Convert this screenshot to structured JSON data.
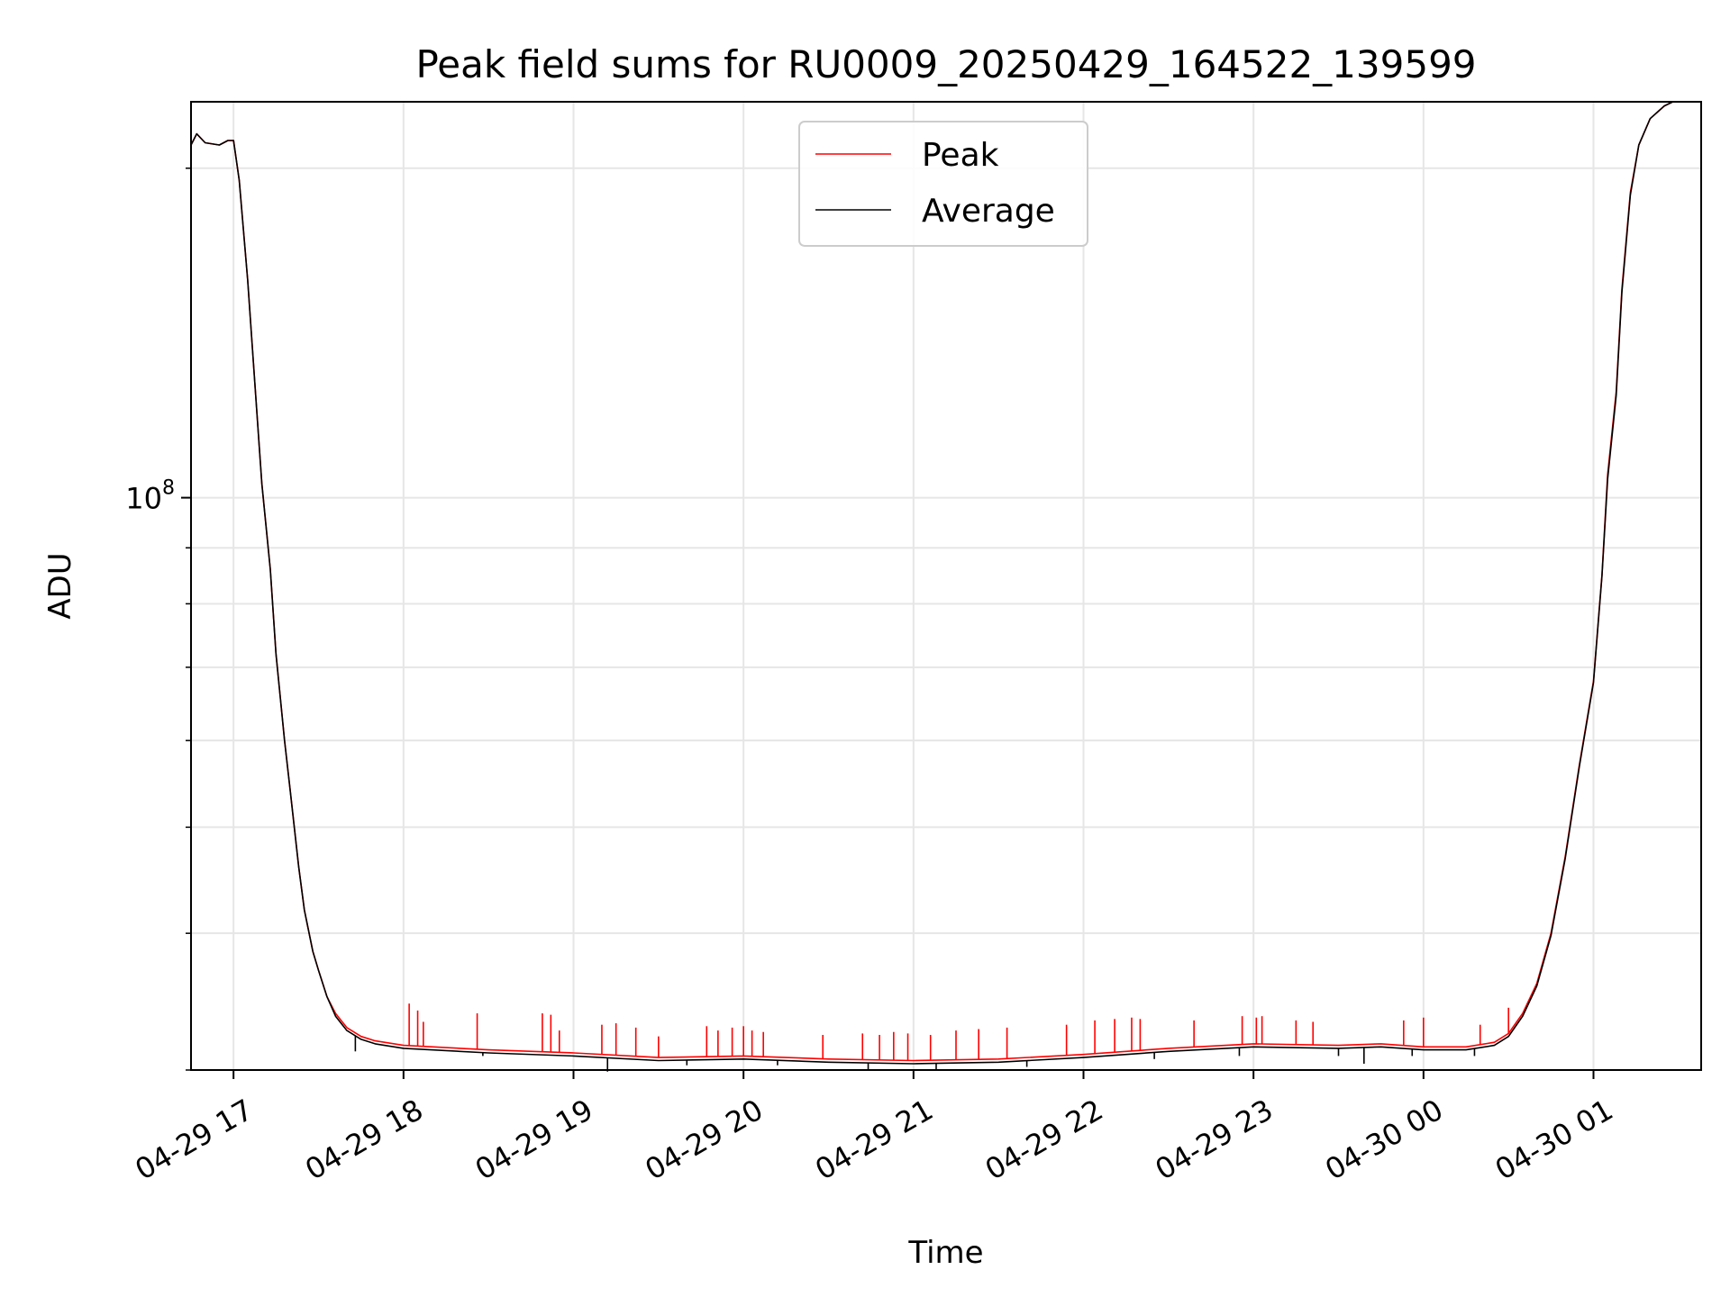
{
  "chart_data": {
    "type": "line",
    "title": "Peak field sums for RU0009_20250429_164522_139599",
    "xlabel": "Time",
    "ylabel": "ADU",
    "yscale": "log",
    "ylim": [
      30000000,
      230000000
    ],
    "xlim": [
      "2025-04-29 16:45",
      "2025-04-30 01:38"
    ],
    "x_ticks": [
      {
        "t": "2025-04-29 17:00",
        "label": "04-29 17"
      },
      {
        "t": "2025-04-29 18:00",
        "label": "04-29 18"
      },
      {
        "t": "2025-04-29 19:00",
        "label": "04-29 19"
      },
      {
        "t": "2025-04-29 20:00",
        "label": "04-29 20"
      },
      {
        "t": "2025-04-29 21:00",
        "label": "04-29 21"
      },
      {
        "t": "2025-04-29 22:00",
        "label": "04-29 22"
      },
      {
        "t": "2025-04-29 23:00",
        "label": "04-29 23"
      },
      {
        "t": "2025-04-30 00:00",
        "label": "04-30 00"
      },
      {
        "t": "2025-04-30 01:00",
        "label": "04-30 01"
      }
    ],
    "y_major_ticks": [
      {
        "value": 100000000,
        "base": "10",
        "exp": "8"
      }
    ],
    "y_minor_ticks": [
      30000000,
      40000000,
      50000000,
      60000000,
      70000000,
      80000000,
      90000000,
      200000000
    ],
    "grid": true,
    "legend_position": "top-center",
    "series": [
      {
        "name": "Peak",
        "color": "#ff0000",
        "points": [
          [
            "2025-04-29 16:45",
            210000000
          ],
          [
            "2025-04-29 16:47",
            215000000
          ],
          [
            "2025-04-29 16:50",
            211000000
          ],
          [
            "2025-04-29 16:55",
            210000000
          ],
          [
            "2025-04-29 16:58",
            212000000
          ],
          [
            "2025-04-29 17:00",
            212000000
          ],
          [
            "2025-04-29 17:02",
            195000000
          ],
          [
            "2025-04-29 17:05",
            158000000
          ],
          [
            "2025-04-29 17:07",
            133000000
          ],
          [
            "2025-04-29 17:10",
            103000000
          ],
          [
            "2025-04-29 17:13",
            86000000
          ],
          [
            "2025-04-29 17:15",
            72000000
          ],
          [
            "2025-04-29 17:18",
            60000000
          ],
          [
            "2025-04-29 17:20",
            54000000
          ],
          [
            "2025-04-29 17:23",
            46000000
          ],
          [
            "2025-04-29 17:25",
            42000000
          ],
          [
            "2025-04-29 17:28",
            38500000
          ],
          [
            "2025-04-29 17:30",
            37000000
          ],
          [
            "2025-04-29 17:33",
            35000000
          ],
          [
            "2025-04-29 17:36",
            33800000
          ],
          [
            "2025-04-29 17:40",
            32800000
          ],
          [
            "2025-04-29 17:45",
            32200000
          ],
          [
            "2025-04-29 17:50",
            31900000
          ],
          [
            "2025-04-29 18:00",
            31600000
          ],
          [
            "2025-04-29 18:30",
            31300000
          ],
          [
            "2025-04-29 19:00",
            31100000
          ],
          [
            "2025-04-29 19:30",
            30800000
          ],
          [
            "2025-04-29 20:00",
            30900000
          ],
          [
            "2025-04-29 20:30",
            30700000
          ],
          [
            "2025-04-29 21:00",
            30600000
          ],
          [
            "2025-04-29 21:30",
            30700000
          ],
          [
            "2025-04-29 22:00",
            31000000
          ],
          [
            "2025-04-29 22:30",
            31400000
          ],
          [
            "2025-04-29 23:00",
            31700000
          ],
          [
            "2025-04-29 23:30",
            31600000
          ],
          [
            "2025-04-29 23:45",
            31700000
          ],
          [
            "2025-04-30 00:00",
            31500000
          ],
          [
            "2025-04-30 00:15",
            31500000
          ],
          [
            "2025-04-30 00:25",
            31800000
          ],
          [
            "2025-04-30 00:30",
            32400000
          ],
          [
            "2025-04-30 00:35",
            33800000
          ],
          [
            "2025-04-30 00:40",
            36000000
          ],
          [
            "2025-04-30 00:45",
            40000000
          ],
          [
            "2025-04-30 00:50",
            47000000
          ],
          [
            "2025-04-30 00:55",
            57000000
          ],
          [
            "2025-04-30 01:00",
            68000000
          ],
          [
            "2025-04-30 01:03",
            85000000
          ],
          [
            "2025-04-30 01:05",
            105000000
          ],
          [
            "2025-04-30 01:08",
            125000000
          ],
          [
            "2025-04-30 01:10",
            155000000
          ],
          [
            "2025-04-30 01:13",
            190000000
          ],
          [
            "2025-04-30 01:16",
            210000000
          ],
          [
            "2025-04-30 01:20",
            222000000
          ],
          [
            "2025-04-30 01:25",
            228000000
          ],
          [
            "2025-04-30 01:28",
            230000000
          ]
        ]
      },
      {
        "name": "Average",
        "color": "#000000",
        "points": [
          [
            "2025-04-29 16:45",
            210000000
          ],
          [
            "2025-04-29 16:47",
            215000000
          ],
          [
            "2025-04-29 16:50",
            211000000
          ],
          [
            "2025-04-29 16:55",
            210000000
          ],
          [
            "2025-04-29 16:58",
            212000000
          ],
          [
            "2025-04-29 17:00",
            212000000
          ],
          [
            "2025-04-29 17:02",
            195000000
          ],
          [
            "2025-04-29 17:05",
            158000000
          ],
          [
            "2025-04-29 17:07",
            133000000
          ],
          [
            "2025-04-29 17:10",
            103000000
          ],
          [
            "2025-04-29 17:13",
            86000000
          ],
          [
            "2025-04-29 17:15",
            72000000
          ],
          [
            "2025-04-29 17:18",
            60000000
          ],
          [
            "2025-04-29 17:20",
            54000000
          ],
          [
            "2025-04-29 17:23",
            46000000
          ],
          [
            "2025-04-29 17:25",
            42000000
          ],
          [
            "2025-04-29 17:28",
            38500000
          ],
          [
            "2025-04-29 17:30",
            37000000
          ],
          [
            "2025-04-29 17:33",
            35000000
          ],
          [
            "2025-04-29 17:36",
            33600000
          ],
          [
            "2025-04-29 17:40",
            32600000
          ],
          [
            "2025-04-29 17:45",
            32000000
          ],
          [
            "2025-04-29 17:50",
            31700000
          ],
          [
            "2025-04-29 18:00",
            31400000
          ],
          [
            "2025-04-29 18:30",
            31100000
          ],
          [
            "2025-04-29 19:00",
            30900000
          ],
          [
            "2025-04-29 19:30",
            30600000
          ],
          [
            "2025-04-29 20:00",
            30700000
          ],
          [
            "2025-04-29 20:30",
            30500000
          ],
          [
            "2025-04-29 21:00",
            30400000
          ],
          [
            "2025-04-29 21:30",
            30500000
          ],
          [
            "2025-04-29 22:00",
            30800000
          ],
          [
            "2025-04-29 22:30",
            31200000
          ],
          [
            "2025-04-29 23:00",
            31500000
          ],
          [
            "2025-04-29 23:30",
            31400000
          ],
          [
            "2025-04-29 23:45",
            31500000
          ],
          [
            "2025-04-30 00:00",
            31300000
          ],
          [
            "2025-04-30 00:15",
            31300000
          ],
          [
            "2025-04-30 00:25",
            31600000
          ],
          [
            "2025-04-30 00:30",
            32200000
          ],
          [
            "2025-04-30 00:35",
            33600000
          ],
          [
            "2025-04-30 00:40",
            35800000
          ],
          [
            "2025-04-30 00:45",
            39800000
          ],
          [
            "2025-04-30 00:50",
            46800000
          ],
          [
            "2025-04-30 00:55",
            56800000
          ],
          [
            "2025-04-30 01:00",
            67800000
          ],
          [
            "2025-04-30 01:03",
            84800000
          ],
          [
            "2025-04-30 01:05",
            104000000
          ],
          [
            "2025-04-30 01:08",
            124000000
          ],
          [
            "2025-04-30 01:10",
            154000000
          ],
          [
            "2025-04-30 01:13",
            189000000
          ],
          [
            "2025-04-30 01:16",
            210000000
          ],
          [
            "2025-04-30 01:20",
            222000000
          ],
          [
            "2025-04-30 01:25",
            228000000
          ],
          [
            "2025-04-30 01:28",
            230000000
          ]
        ]
      }
    ],
    "peak_spikes": [
      [
        "2025-04-29 18:02",
        34500000
      ],
      [
        "2025-04-29 18:05",
        34000000
      ],
      [
        "2025-04-29 18:07",
        33200000
      ],
      [
        "2025-04-29 18:26",
        33800000
      ],
      [
        "2025-04-29 18:49",
        33800000
      ],
      [
        "2025-04-29 18:52",
        33700000
      ],
      [
        "2025-04-29 18:55",
        32600000
      ],
      [
        "2025-04-29 19:10",
        33000000
      ],
      [
        "2025-04-29 19:15",
        33100000
      ],
      [
        "2025-04-29 19:22",
        32800000
      ],
      [
        "2025-04-29 19:30",
        32200000
      ],
      [
        "2025-04-29 19:47",
        32900000
      ],
      [
        "2025-04-29 19:51",
        32600000
      ],
      [
        "2025-04-29 19:56",
        32800000
      ],
      [
        "2025-04-29 20:00",
        32900000
      ],
      [
        "2025-04-29 20:03",
        32600000
      ],
      [
        "2025-04-29 20:07",
        32500000
      ],
      [
        "2025-04-29 20:28",
        32300000
      ],
      [
        "2025-04-29 20:42",
        32400000
      ],
      [
        "2025-04-29 20:48",
        32300000
      ],
      [
        "2025-04-29 20:53",
        32500000
      ],
      [
        "2025-04-29 20:58",
        32400000
      ],
      [
        "2025-04-29 21:06",
        32300000
      ],
      [
        "2025-04-29 21:15",
        32600000
      ],
      [
        "2025-04-29 21:23",
        32700000
      ],
      [
        "2025-04-29 21:33",
        32800000
      ],
      [
        "2025-04-29 21:54",
        33000000
      ],
      [
        "2025-04-29 22:04",
        33300000
      ],
      [
        "2025-04-29 22:11",
        33400000
      ],
      [
        "2025-04-29 22:17",
        33500000
      ],
      [
        "2025-04-29 22:20",
        33400000
      ],
      [
        "2025-04-29 22:39",
        33300000
      ],
      [
        "2025-04-29 22:56",
        33600000
      ],
      [
        "2025-04-29 23:01",
        33500000
      ],
      [
        "2025-04-29 23:03",
        33600000
      ],
      [
        "2025-04-29 23:15",
        33300000
      ],
      [
        "2025-04-29 23:21",
        33200000
      ],
      [
        "2025-04-29 23:53",
        33300000
      ],
      [
        "2025-04-30 00:00",
        33500000
      ],
      [
        "2025-04-30 00:20",
        33000000
      ],
      [
        "2025-04-30 00:30",
        34200000
      ]
    ],
    "average_dips": [
      [
        "2025-04-29 17:43",
        31200000
      ],
      [
        "2025-04-29 18:28",
        30900000
      ],
      [
        "2025-04-29 19:12",
        29900000
      ],
      [
        "2025-04-29 19:40",
        30300000
      ],
      [
        "2025-04-29 20:12",
        30300000
      ],
      [
        "2025-04-29 20:44",
        30000000
      ],
      [
        "2025-04-29 21:08",
        30000000
      ],
      [
        "2025-04-29 21:40",
        30200000
      ],
      [
        "2025-04-29 22:25",
        30700000
      ],
      [
        "2025-04-29 22:55",
        30900000
      ],
      [
        "2025-04-29 23:30",
        30900000
      ],
      [
        "2025-04-29 23:39",
        30400000
      ],
      [
        "2025-04-29 23:56",
        30900000
      ],
      [
        "2025-04-30 00:18",
        30900000
      ]
    ]
  }
}
